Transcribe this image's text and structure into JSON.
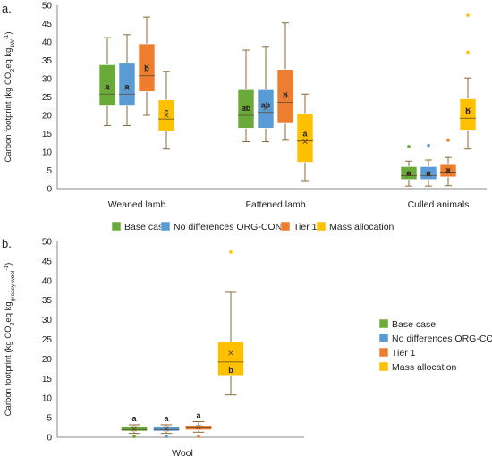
{
  "chart_data": [
    {
      "type": "box",
      "panel_label": "a.",
      "ylabel_main": "Carbon footprint (kg CO",
      "ylabel_sub2": "2",
      "ylabel_mid": "eq kg",
      "ylabel_sub_unit": "LW",
      "ylabel_sup": "-1",
      "ylabel_end": ")",
      "ylim": [
        0,
        50
      ],
      "yticks": [
        "0",
        "5",
        "10",
        "15",
        "20",
        "25",
        "30",
        "35",
        "40",
        "45",
        "50"
      ],
      "categories": [
        "Weaned lamb",
        "Fattened lamb",
        "Culled animals"
      ],
      "legend_position": "bottom",
      "series": [
        {
          "name": "Base case",
          "color": "#6aaa3a",
          "boxes": [
            {
              "min": 17.2,
              "q1": 22.8,
              "median": 25.8,
              "q3": 33.8,
              "max": 41.2,
              "mean": 27.5,
              "letter": "a"
            },
            {
              "min": 12.8,
              "q1": 16.5,
              "median": 20.0,
              "q3": 27.0,
              "max": 37.8,
              "mean": 22.0,
              "letter": "ab"
            },
            {
              "min": 0.7,
              "q1": 2.5,
              "median": 3.5,
              "q3": 6.0,
              "max": 7.5,
              "mean": 4.0,
              "letter": "a",
              "outliers": [
                11.5
              ]
            }
          ]
        },
        {
          "name": "No differences ORG-CONV",
          "color": "#5b9bd5",
          "boxes": [
            {
              "min": 17.2,
              "q1": 22.8,
              "median": 25.8,
              "q3": 34.2,
              "max": 42.0,
              "mean": 27.5,
              "letter": "a"
            },
            {
              "min": 12.8,
              "q1": 16.5,
              "median": 20.8,
              "q3": 27.0,
              "max": 38.6,
              "mean": 22.0,
              "letter": "ab"
            },
            {
              "min": 0.7,
              "q1": 2.5,
              "median": 3.5,
              "q3": 6.0,
              "max": 7.8,
              "mean": 4.0,
              "letter": "a",
              "outliers": [
                11.8
              ]
            }
          ]
        },
        {
          "name": "Tier 1",
          "color": "#ed7d31",
          "boxes": [
            {
              "min": 20.0,
              "q1": 26.5,
              "median": 30.8,
              "q3": 39.5,
              "max": 46.8,
              "mean": 33.2,
              "letter": "b"
            },
            {
              "min": 13.2,
              "q1": 17.8,
              "median": 23.5,
              "q3": 32.5,
              "max": 45.2,
              "mean": 25.8,
              "letter": "b"
            },
            {
              "min": 0.8,
              "q1": 3.2,
              "median": 4.5,
              "q3": 6.8,
              "max": 8.5,
              "mean": 5.0,
              "letter": "a",
              "outliers": [
                13.2
              ]
            }
          ]
        },
        {
          "name": "Mass allocation",
          "color": "#ffc000",
          "boxes": [
            {
              "min": 10.8,
              "q1": 15.8,
              "median": 19.0,
              "q3": 24.2,
              "max": 32.0,
              "mean": 20.0,
              "letter": "c"
            },
            {
              "min": 2.2,
              "q1": 7.2,
              "median": 13.0,
              "q3": 20.5,
              "max": 25.8,
              "mean": 12.8,
              "letter": "a"
            },
            {
              "min": 10.8,
              "q1": 16.0,
              "median": 19.2,
              "q3": 24.5,
              "max": 30.2,
              "mean": 21.5,
              "letter": "b",
              "outliers": [
                37.2,
                47.3
              ]
            }
          ]
        }
      ]
    },
    {
      "type": "box",
      "panel_label": "b.",
      "ylabel_main": "Carbon footprint (kg CO",
      "ylabel_sub2": "2",
      "ylabel_mid": "eq kg",
      "ylabel_sub_unit": "greasy wool",
      "ylabel_sup": "-1",
      "ylabel_end": ")",
      "ylim": [
        0,
        50
      ],
      "yticks": [
        "0",
        "5",
        "10",
        "15",
        "20",
        "25",
        "30",
        "35",
        "40",
        "45",
        "50"
      ],
      "categories": [
        "Wool"
      ],
      "legend_position": "right",
      "series": [
        {
          "name": "Base case",
          "color": "#6aaa3a",
          "boxes": [
            {
              "min": 1.0,
              "q1": 1.6,
              "median": 2.0,
              "q3": 2.6,
              "max": 3.2,
              "mean": 2.1,
              "letter": "a",
              "outliers": [
                0.2
              ]
            }
          ]
        },
        {
          "name": "No differences ORG-CONV",
          "color": "#5b9bd5",
          "boxes": [
            {
              "min": 1.0,
              "q1": 1.6,
              "median": 2.0,
              "q3": 2.6,
              "max": 3.2,
              "mean": 2.1,
              "letter": "a",
              "outliers": [
                0.2
              ]
            }
          ]
        },
        {
          "name": "Tier 1",
          "color": "#ed7d31",
          "boxes": [
            {
              "min": 1.3,
              "q1": 1.9,
              "median": 2.4,
              "q3": 3.0,
              "max": 4.0,
              "mean": 2.6,
              "letter": "a",
              "outliers": [
                0.2
              ]
            }
          ]
        },
        {
          "name": "Mass allocation",
          "color": "#ffc000",
          "boxes": [
            {
              "min": 10.8,
              "q1": 15.8,
              "median": 19.2,
              "q3": 24.3,
              "max": 37.0,
              "mean": 21.5,
              "letter": "b",
              "outliers": [
                47.3
              ]
            }
          ]
        }
      ]
    }
  ]
}
